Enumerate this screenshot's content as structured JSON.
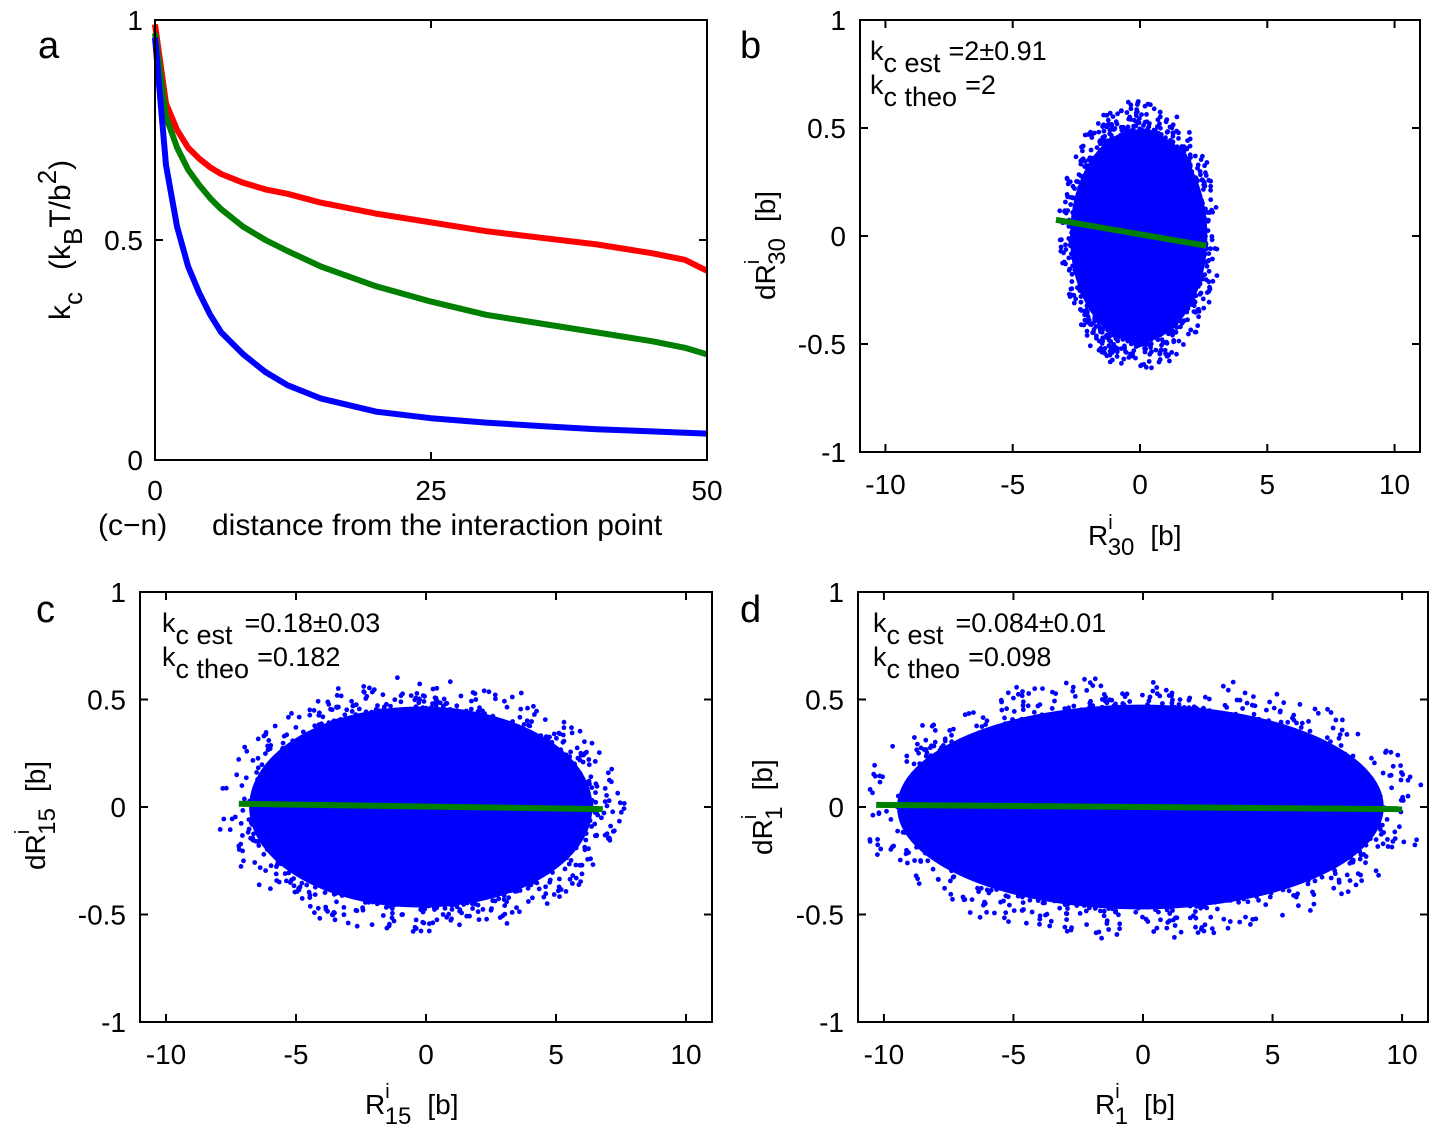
{
  "figure": {
    "panels": [
      {
        "letter": "a"
      },
      {
        "letter": "b"
      },
      {
        "letter": "c"
      },
      {
        "letter": "d"
      }
    ]
  },
  "chart_data": [
    {
      "type": "line",
      "panel": "a",
      "ylabel_parts": {
        "k": "k",
        "c": "c",
        "open": "(k",
        "B": "B",
        "T": "T/b",
        "two": "2",
        "close": ")"
      },
      "xlabel_prefix": "(c−n)",
      "xlabel": "distance from the interaction point",
      "xlim": [
        0,
        50
      ],
      "ylim": [
        0,
        1
      ],
      "xticks": [
        0,
        25,
        50
      ],
      "yticks": [
        0,
        0.5,
        1
      ],
      "xtick_labels": [
        "0",
        "25",
        "50"
      ],
      "ytick_labels": [
        "0",
        "0.5",
        "1"
      ],
      "x": [
        0,
        1,
        2,
        3,
        4,
        5,
        6,
        8,
        10,
        12,
        15,
        20,
        25,
        30,
        35,
        40,
        45,
        48,
        50
      ],
      "series": [
        {
          "color": "#ff0000",
          "values": [
            0.99,
            0.81,
            0.75,
            0.71,
            0.685,
            0.665,
            0.65,
            0.63,
            0.615,
            0.605,
            0.585,
            0.56,
            0.54,
            0.52,
            0.505,
            0.49,
            0.47,
            0.455,
            0.43
          ]
        },
        {
          "color": "#007f00",
          "values": [
            0.97,
            0.78,
            0.71,
            0.66,
            0.625,
            0.595,
            0.57,
            0.53,
            0.5,
            0.475,
            0.44,
            0.395,
            0.36,
            0.33,
            0.31,
            0.29,
            0.27,
            0.255,
            0.24
          ]
        },
        {
          "color": "#0000ff",
          "values": [
            0.96,
            0.67,
            0.53,
            0.44,
            0.38,
            0.33,
            0.29,
            0.24,
            0.2,
            0.17,
            0.14,
            0.11,
            0.095,
            0.085,
            0.077,
            0.07,
            0.065,
            0.062,
            0.06
          ]
        }
      ]
    },
    {
      "type": "scatter",
      "panel": "b",
      "xlabel_parts": {
        "R": "R",
        "sup": "i",
        "sub": "30",
        "unit": "[b]"
      },
      "ylabel_parts": {
        "dR": "dR",
        "sup": "i",
        "sub": "30",
        "unit": "[b]"
      },
      "xlim": [
        -11,
        11
      ],
      "ylim": [
        -1,
        1
      ],
      "xticks": [
        -10,
        -5,
        0,
        5,
        10
      ],
      "yticks": [
        -1,
        -0.5,
        0,
        0.5,
        1
      ],
      "xtick_labels": [
        "-10",
        "-5",
        "0",
        "5",
        "10"
      ],
      "ytick_labels": [
        "-1",
        "-0.5",
        "0",
        "0.5",
        "1"
      ],
      "point_color": "#0000ff",
      "cloud": {
        "x_center": -0.05,
        "x_halfwidth": 2.9,
        "y_center": 0.0,
        "y_halfheight": 0.58
      },
      "fit": {
        "color": "#007f00",
        "x": [
          -3.3,
          2.6
        ],
        "y": [
          0.075,
          -0.045
        ]
      },
      "annotation": {
        "k": "k",
        "sub_est": "c est",
        "est_value": "=2±0.91",
        "sub_theo": "c theo",
        "theo_value": "=2"
      }
    },
    {
      "type": "scatter",
      "panel": "c",
      "xlabel_parts": {
        "R": "R",
        "sup": "i",
        "sub": "15",
        "unit": "[b]"
      },
      "ylabel_parts": {
        "dR": "dR",
        "sup": "i",
        "sub": "15",
        "unit": "[b]"
      },
      "xlim": [
        -11,
        11
      ],
      "ylim": [
        -1,
        1
      ],
      "xticks": [
        -10,
        -5,
        0,
        5,
        10
      ],
      "yticks": [
        -1,
        -0.5,
        0,
        0.5,
        1
      ],
      "xtick_labels": [
        "-10",
        "-5",
        "0",
        "5",
        "10"
      ],
      "ytick_labels": [
        "-1",
        "-0.5",
        "0",
        "0.5",
        "1"
      ],
      "point_color": "#0000ff",
      "cloud": {
        "x_center": -0.2,
        "x_halfwidth": 7.1,
        "y_center": 0.0,
        "y_halfheight": 0.55
      },
      "fit": {
        "color": "#007f00",
        "x": [
          -7.2,
          6.8
        ],
        "y": [
          0.015,
          -0.01
        ]
      },
      "annotation": {
        "k": "k",
        "sub_est": "c est",
        "est_value": "=0.18±0.03",
        "sub_theo": "c theo",
        "theo_value": "=0.182"
      }
    },
    {
      "type": "scatter",
      "panel": "d",
      "xlabel_parts": {
        "R": "R",
        "sup": "i",
        "sub": "1",
        "unit": "[b]"
      },
      "ylabel_parts": {
        "dR": "dR",
        "sup": "i",
        "sub": "1",
        "unit": "[b]"
      },
      "xlim": [
        -11,
        11
      ],
      "ylim": [
        -1,
        1
      ],
      "xticks": [
        -10,
        -5,
        0,
        5,
        10
      ],
      "yticks": [
        -1,
        -0.5,
        0,
        0.5,
        1
      ],
      "xtick_labels": [
        "-10",
        "-5",
        "0",
        "5",
        "10"
      ],
      "ytick_labels": [
        "-1",
        "-0.5",
        "0",
        "0.5",
        "1"
      ],
      "point_color": "#0000ff",
      "cloud": {
        "x_center": -0.1,
        "x_halfwidth": 10.1,
        "y_center": 0.0,
        "y_halfheight": 0.56
      },
      "fit": {
        "color": "#007f00",
        "x": [
          -10.3,
          10.0
        ],
        "y": [
          0.01,
          -0.01
        ]
      },
      "annotation": {
        "k": "k",
        "sub_est": "c est",
        "est_value": "=0.084±0.01",
        "sub_theo": "c theo",
        "theo_value": "=0.098"
      }
    }
  ]
}
